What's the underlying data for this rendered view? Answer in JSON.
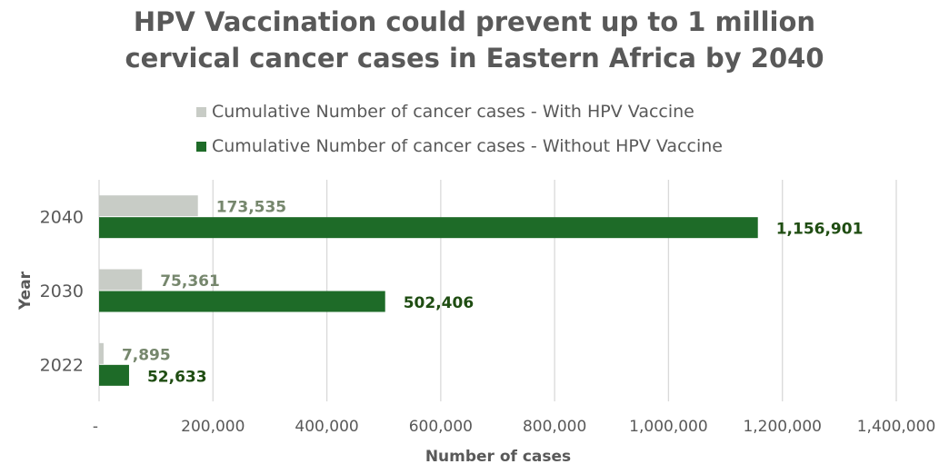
{
  "chart_data": {
    "type": "bar",
    "orientation": "horizontal",
    "title_line1": "HPV Vaccination could prevent up to 1 million",
    "title_line2": "cervical cancer cases in Eastern Africa by 2040",
    "xlabel": "Number of cases",
    "ylabel": "Year",
    "categories": [
      "2040",
      "2030",
      "2022"
    ],
    "xlim": [
      0,
      1400000
    ],
    "x_ticks": [
      0,
      200000,
      400000,
      600000,
      800000,
      1000000,
      1200000,
      1400000
    ],
    "x_tick_labels": [
      "-",
      "200,000",
      "400,000",
      "600,000",
      "800,000",
      "1,000,000",
      "1,200,000",
      "1,400,000"
    ],
    "grid": true,
    "legend_position": "top",
    "series": [
      {
        "name": "Cumulative Number of cancer cases - With HPV Vaccine",
        "color": "#c8ccc6",
        "label_color": "#76876d",
        "values": [
          173535,
          75361,
          7895
        ],
        "labels": [
          "173,535",
          "75,361",
          "7,895"
        ]
      },
      {
        "name": "Cumulative Number of cancer cases - Without HPV Vaccine",
        "color": "#1e6b28",
        "label_color": "#1f4d12",
        "values": [
          1156901,
          502406,
          52633
        ],
        "labels": [
          "1,156,901",
          "502,406",
          "52,633"
        ]
      }
    ]
  }
}
